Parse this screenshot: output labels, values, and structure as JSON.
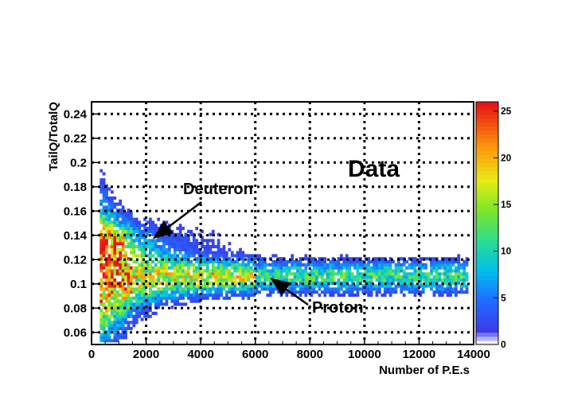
{
  "chart_data": {
    "type": "heatmap",
    "xlabel": "Number of P.E.s",
    "ylabel": "TailQ/TotalQ",
    "xlim": [
      0,
      14000
    ],
    "ylim": [
      0.05,
      0.25
    ],
    "x_ticks": [
      0,
      2000,
      4000,
      6000,
      8000,
      10000,
      12000,
      14000
    ],
    "x_tick_labels": [
      "0",
      "2000",
      "4000",
      "6000",
      "8000",
      "10000",
      "12000",
      "14000"
    ],
    "y_ticks": [
      0.06,
      0.08,
      0.1,
      0.12,
      0.14,
      0.16,
      0.18,
      0.2,
      0.22,
      0.24
    ],
    "y_tick_labels": [
      "0.06",
      "0.08",
      "0.1",
      "0.12",
      "0.14",
      "0.16",
      "0.18",
      "0.2",
      "0.22",
      "0.24"
    ],
    "grid": true,
    "colorbar": {
      "range": [
        0,
        26
      ],
      "ticks": [
        0,
        5,
        10,
        15,
        20,
        25
      ],
      "tick_labels": [
        "0",
        "5",
        "10",
        "15",
        "20",
        "25"
      ]
    },
    "bands": [
      {
        "label": "Proton",
        "center_y": 0.105,
        "x_range": [
          300,
          13800
        ]
      },
      {
        "label": "Deuteron",
        "center_y": 0.135,
        "x_range": [
          300,
          6500
        ]
      }
    ],
    "annotations": [
      {
        "text": "Data"
      },
      {
        "text": "Deuteron",
        "arrow_to": [
          2300,
          0.138
        ]
      },
      {
        "text": "Proton",
        "arrow_to": [
          6600,
          0.104
        ]
      }
    ]
  }
}
